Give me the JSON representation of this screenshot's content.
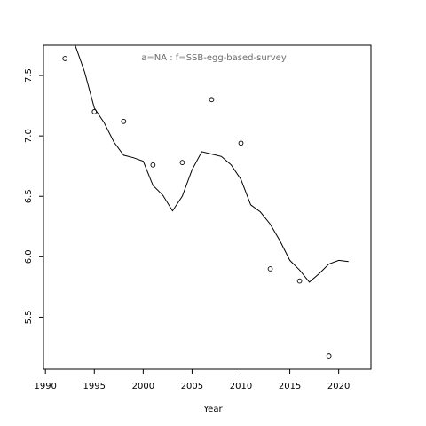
{
  "chart_data": {
    "type": "scatter",
    "title": "",
    "annotation": "a=NA  :  f=SSB-egg-based-survey",
    "xlabel": "Year",
    "ylabel": "",
    "xlim": [
      1989.8,
      2023.3
    ],
    "ylim": [
      5.07,
      7.75
    ],
    "grid": false,
    "legend": "none",
    "x_ticks": [
      1990,
      1995,
      2000,
      2005,
      2010,
      2015,
      2020
    ],
    "y_ticks": [
      5.5,
      6.0,
      6.5,
      7.0,
      7.5
    ],
    "x_tick_labels": [
      "1990",
      "1995",
      "2000",
      "2005",
      "2010",
      "2015",
      "2020"
    ],
    "y_tick_labels": [
      "5.5",
      "6.0",
      "6.5",
      "7.0",
      "7.5"
    ],
    "series": [
      {
        "type": "scatter",
        "points": [
          {
            "x": 1992,
            "y": 7.64
          },
          {
            "x": 1995,
            "y": 7.2
          },
          {
            "x": 1998,
            "y": 7.12
          },
          {
            "x": 2001,
            "y": 6.76
          },
          {
            "x": 2004,
            "y": 6.78
          },
          {
            "x": 2007,
            "y": 7.3
          },
          {
            "x": 2010,
            "y": 6.94
          },
          {
            "x": 2013,
            "y": 5.9
          },
          {
            "x": 2016,
            "y": 5.8
          },
          {
            "x": 2019,
            "y": 5.18
          }
        ]
      },
      {
        "type": "line",
        "x": [
          1992,
          1993,
          1994,
          1995,
          1996,
          1997,
          1998,
          1999,
          2000,
          2001,
          2002,
          2003,
          2004,
          2005,
          2006,
          2007,
          2008,
          2009,
          2010,
          2011,
          2012,
          2013,
          2014,
          2015,
          2016,
          2017,
          2018,
          2019,
          2020,
          2021
        ],
        "y": [
          7.75,
          7.76,
          7.53,
          7.23,
          7.11,
          6.95,
          6.84,
          6.82,
          6.79,
          6.59,
          6.51,
          6.38,
          6.5,
          6.72,
          6.87,
          6.85,
          6.83,
          6.76,
          6.64,
          6.43,
          6.37,
          6.27,
          6.13,
          5.97,
          5.89,
          5.79,
          5.86,
          5.94,
          5.97,
          5.96
        ]
      }
    ],
    "colors": {
      "line": "#000000",
      "points": "#000000",
      "annotation": "#6b6b6b",
      "axes": "#000000"
    }
  }
}
